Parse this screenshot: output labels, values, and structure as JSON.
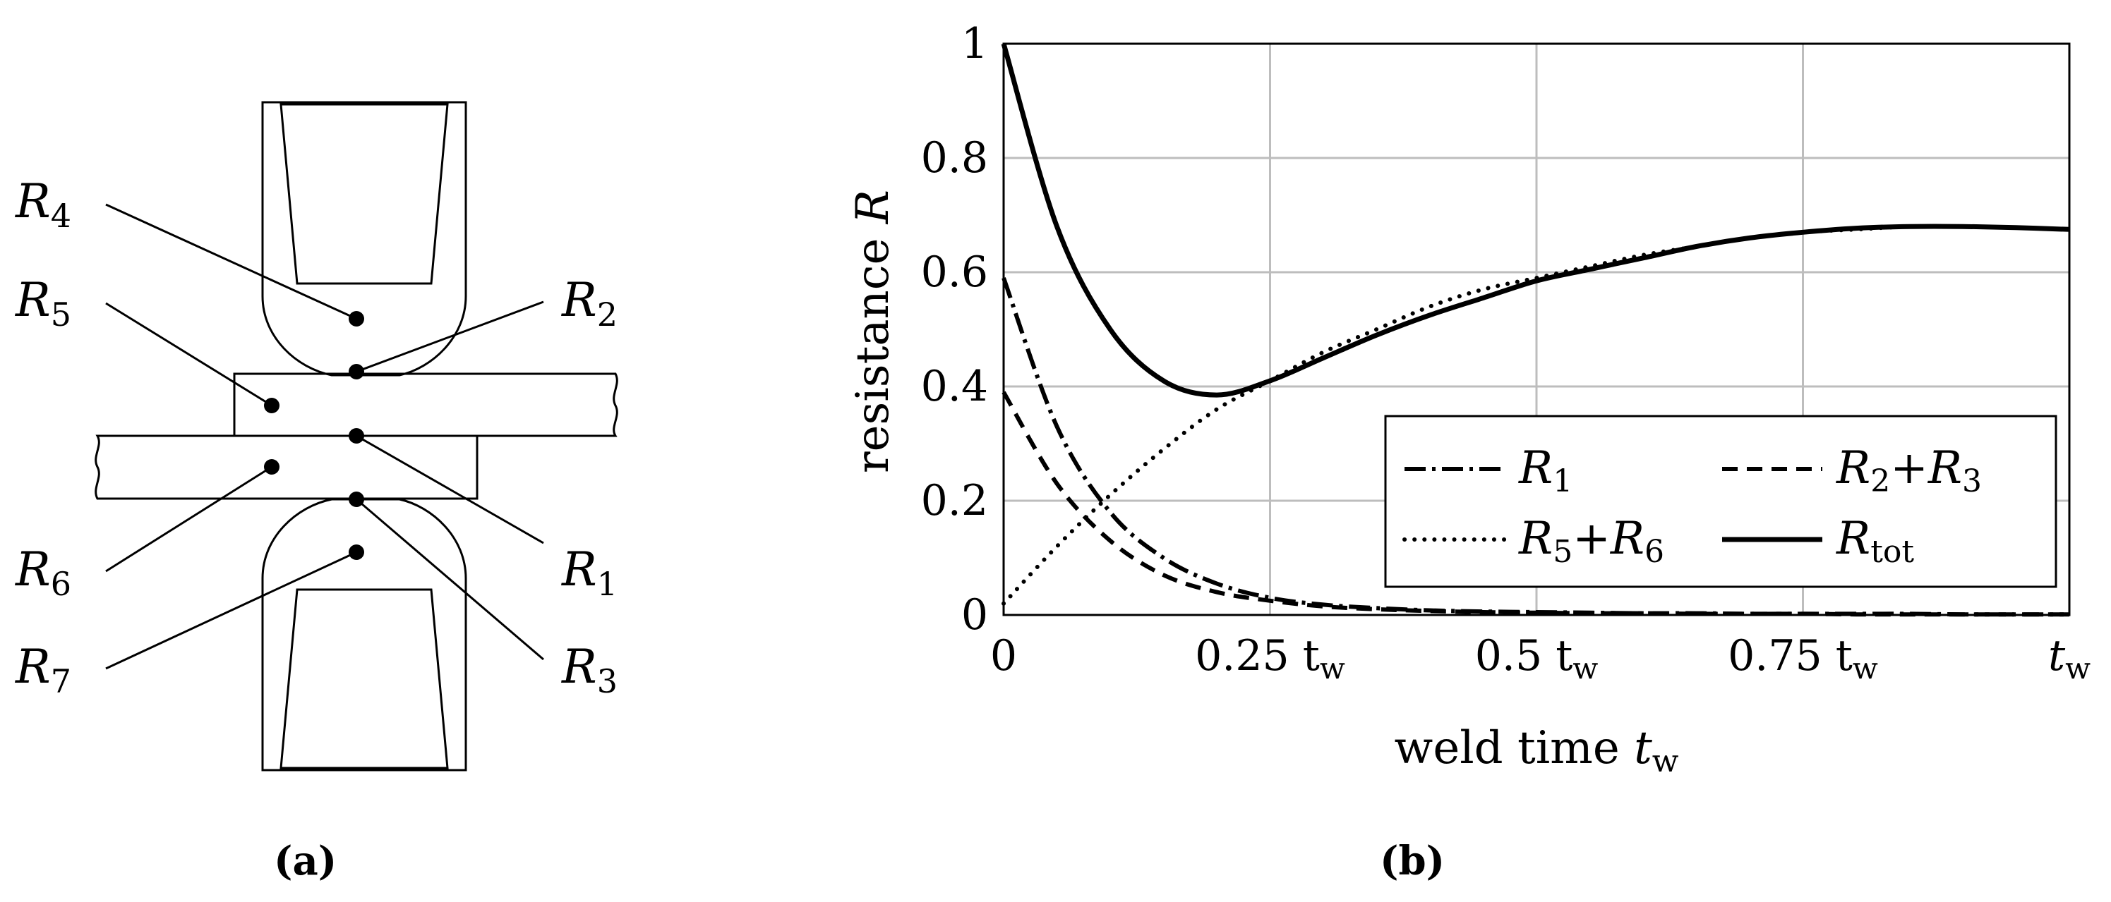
{
  "subfigures": {
    "a": {
      "label_left": "(",
      "label_letter": "a",
      "label_right": ")"
    },
    "b": {
      "label_left": "(",
      "label_letter": "b",
      "label_right": ")"
    }
  },
  "diagram": {
    "resistor_labels": [
      {
        "name": "R4",
        "base": "R",
        "sub": "4"
      },
      {
        "name": "R5",
        "base": "R",
        "sub": "5"
      },
      {
        "name": "R2",
        "base": "R",
        "sub": "2"
      },
      {
        "name": "R6",
        "base": "R",
        "sub": "6"
      },
      {
        "name": "R1",
        "base": "R",
        "sub": "1"
      },
      {
        "name": "R7",
        "base": "R",
        "sub": "7"
      },
      {
        "name": "R3",
        "base": "R",
        "sub": "3"
      }
    ]
  },
  "chart_data": {
    "type": "line",
    "title": "",
    "xlabel_text": "weld time ",
    "xlabel_symbol": "t",
    "xlabel_sub": "w",
    "ylabel_text": "resistance ",
    "ylabel_symbol": "R",
    "xlim": [
      0,
      1
    ],
    "ylim": [
      0,
      1
    ],
    "grid": true,
    "legend_position": "lower-right",
    "x_ticks": [
      {
        "value": 0,
        "coef": "0",
        "unit": ""
      },
      {
        "value": 0.25,
        "coef": "0.25",
        "unit": "t"
      },
      {
        "value": 0.5,
        "coef": "0.5",
        "unit": "t"
      },
      {
        "value": 0.75,
        "coef": "0.75",
        "unit": "t"
      },
      {
        "value": 1,
        "coef": "",
        "unit": "t"
      }
    ],
    "x_tick_unit_sub": "w",
    "y_ticks": [
      {
        "value": 0,
        "label": "0"
      },
      {
        "value": 0.2,
        "label": "0.2"
      },
      {
        "value": 0.4,
        "label": "0.4"
      },
      {
        "value": 0.6,
        "label": "0.6"
      },
      {
        "value": 0.8,
        "label": "0.8"
      },
      {
        "value": 1,
        "label": "1"
      }
    ],
    "x": [
      0,
      0.05,
      0.1,
      0.15,
      0.2,
      0.25,
      0.3,
      0.35,
      0.4,
      0.45,
      0.5,
      0.55,
      0.6,
      0.65,
      0.7,
      0.75,
      0.8,
      0.85,
      0.9,
      0.95,
      1.0
    ],
    "series": [
      {
        "name": "R1",
        "legend_base": "R",
        "legend_sub": "1",
        "legend_extra_base": "",
        "legend_extra_sub": "",
        "style": "dashdot",
        "values": [
          0.59,
          0.33,
          0.18,
          0.1,
          0.055,
          0.03,
          0.018,
          0.012,
          0.008,
          0.006,
          0.005,
          0.004,
          0.003,
          0.003,
          0.002,
          0.002,
          0.002,
          0.002,
          0.001,
          0.001,
          0.001
        ]
      },
      {
        "name": "R2+R3",
        "legend_base": "R",
        "legend_sub": "2",
        "legend_extra_base": "R",
        "legend_extra_sub": "3",
        "style": "dashed",
        "values": [
          0.39,
          0.23,
          0.13,
          0.07,
          0.04,
          0.025,
          0.015,
          0.01,
          0.007,
          0.005,
          0.004,
          0.003,
          0.003,
          0.002,
          0.002,
          0.002,
          0.001,
          0.001,
          0.001,
          0.001,
          0.001
        ]
      },
      {
        "name": "R5+R6",
        "legend_base": "R",
        "legend_sub": "5",
        "legend_extra_base": "R",
        "legend_extra_sub": "6",
        "style": "dotted",
        "values": [
          0.02,
          0.12,
          0.21,
          0.29,
          0.36,
          0.41,
          0.46,
          0.5,
          0.54,
          0.57,
          0.59,
          0.61,
          0.63,
          0.645,
          0.66,
          0.67,
          0.675,
          0.68,
          0.68,
          0.678,
          0.675
        ]
      },
      {
        "name": "Rtot",
        "legend_base": "R",
        "legend_sub": "tot",
        "legend_extra_base": "",
        "legend_extra_sub": "",
        "style": "solid",
        "values": [
          1.0,
          0.68,
          0.5,
          0.41,
          0.385,
          0.41,
          0.45,
          0.49,
          0.525,
          0.555,
          0.585,
          0.605,
          0.625,
          0.645,
          0.66,
          0.67,
          0.677,
          0.68,
          0.68,
          0.678,
          0.675
        ]
      }
    ]
  }
}
